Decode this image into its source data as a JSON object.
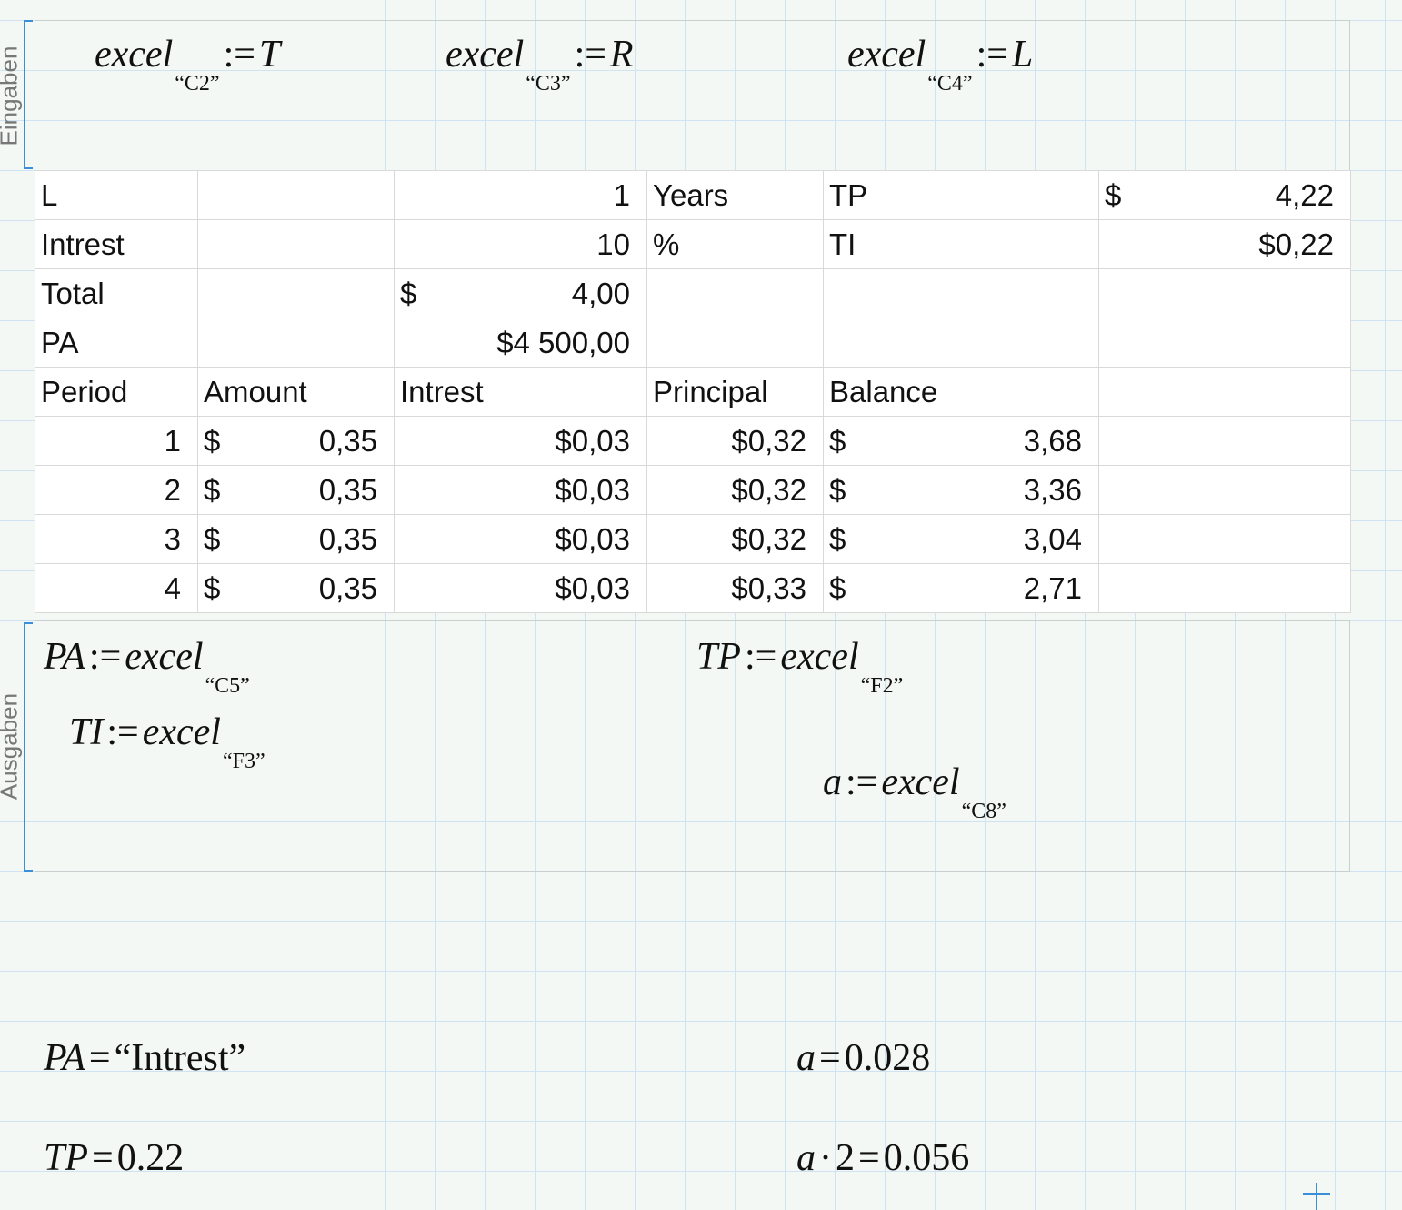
{
  "inputs": {
    "label": "Eingaben",
    "equations": [
      {
        "lhs": "excel",
        "sub": "“C2”",
        "op": ":=",
        "rhs": "T"
      },
      {
        "lhs": "excel",
        "sub": "“C3”",
        "op": ":=",
        "rhs": "R"
      },
      {
        "lhs": "excel",
        "sub": "“C4”",
        "op": ":=",
        "rhs": "L"
      }
    ]
  },
  "table": {
    "rows": [
      [
        "L",
        null,
        "1",
        "Years",
        "TP",
        [
          "$",
          "4,22"
        ]
      ],
      [
        "Intrest",
        null,
        "10",
        "%",
        "TI",
        "$0,22"
      ],
      [
        "Total",
        null,
        [
          "$",
          "4,00"
        ],
        null,
        null,
        null
      ],
      [
        "PA",
        null,
        "$4 500,00",
        null,
        null,
        null
      ],
      [
        "Period",
        "Amount",
        "Intrest",
        "Principal",
        "Balance",
        null
      ],
      [
        "1",
        [
          "$",
          "0,35"
        ],
        "$0,03",
        "$0,32",
        [
          "$",
          "3,68"
        ],
        null
      ],
      [
        "2",
        [
          "$",
          "0,35"
        ],
        "$0,03",
        "$0,32",
        [
          "$",
          "3,36"
        ],
        null
      ],
      [
        "3",
        [
          "$",
          "0,35"
        ],
        "$0,03",
        "$0,32",
        [
          "$",
          "3,04"
        ],
        null
      ],
      [
        "4",
        [
          "$",
          "0,35"
        ],
        "$0,03",
        "$0,33",
        [
          "$",
          "2,71"
        ],
        null
      ]
    ]
  },
  "outputs": {
    "label": "Ausgaben",
    "equations": [
      {
        "lhs": "PA",
        "op": ":=",
        "rhs": "excel",
        "sub": "“C5”"
      },
      {
        "lhs": "TP",
        "op": ":=",
        "rhs": "excel",
        "sub": "“F2”"
      },
      {
        "lhs": "TI",
        "op": ":=",
        "rhs": "excel",
        "sub": "“F3”"
      },
      {
        "lhs": "a",
        "op": ":=",
        "rhs": "excel",
        "sub": "“C8”"
      }
    ]
  },
  "results": [
    {
      "lhs": "PA",
      "op": "=",
      "value": "“Intrest”"
    },
    {
      "lhs": "a",
      "op": "=",
      "value": 0.028
    },
    {
      "lhs": "TP",
      "op": "=",
      "value": 0.22
    },
    {
      "lhs": "a",
      "times": "·",
      "factor": 2,
      "op": "=",
      "value": 0.056
    }
  ]
}
